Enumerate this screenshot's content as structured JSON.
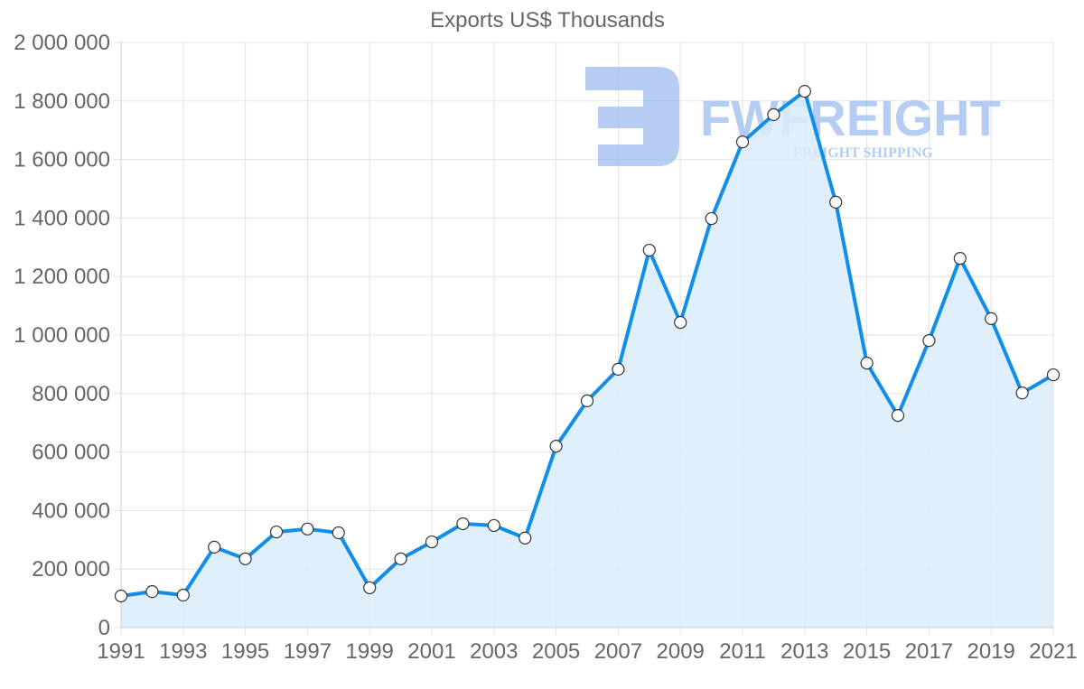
{
  "chart_data": {
    "type": "area",
    "title": "Exports US$ Thousands",
    "xlabel": "",
    "ylabel": "",
    "categories": [
      "1991",
      "1992",
      "1993",
      "1994",
      "1995",
      "1996",
      "1997",
      "1998",
      "1999",
      "2000",
      "2001",
      "2002",
      "2003",
      "2004",
      "2005",
      "2006",
      "2007",
      "2008",
      "2009",
      "2010",
      "2011",
      "2012",
      "2013",
      "2014",
      "2015",
      "2016",
      "2017",
      "2018",
      "2019",
      "2020",
      "2021"
    ],
    "series": [
      {
        "name": "Exports US$ Thousands",
        "values": [
          108000,
          123000,
          111000,
          275000,
          235000,
          327000,
          337000,
          324000,
          136000,
          235000,
          293000,
          355000,
          349000,
          306000,
          620000,
          775000,
          883000,
          1290000,
          1043000,
          1398000,
          1660000,
          1753000,
          1833000,
          1454000,
          904000,
          725000,
          981000,
          1262000,
          1056000,
          802000,
          864000
        ],
        "line_color": "#118ee9",
        "fill_color": "#d9ecfc",
        "marker_fill": "#ffffff",
        "marker_stroke": "#333333"
      }
    ],
    "ylim": [
      0,
      2000000
    ],
    "y_ticks": [
      "0",
      "200 000",
      "400 000",
      "600 000",
      "800 000",
      "1 000 000",
      "1 200 000",
      "1 400 000",
      "1 600 000",
      "1 800 000",
      "2 000 000"
    ],
    "x_ticks": [
      "1991",
      "1993",
      "1995",
      "1997",
      "1999",
      "2001",
      "2003",
      "2005",
      "2007",
      "2009",
      "2011",
      "2013",
      "2015",
      "2017",
      "2019",
      "2021"
    ],
    "grid": true,
    "legend": "none"
  },
  "watermark": {
    "brand": "FWFREIGHT",
    "tagline": "FREIGHT SHIPPING",
    "color": "#9dbbef"
  }
}
